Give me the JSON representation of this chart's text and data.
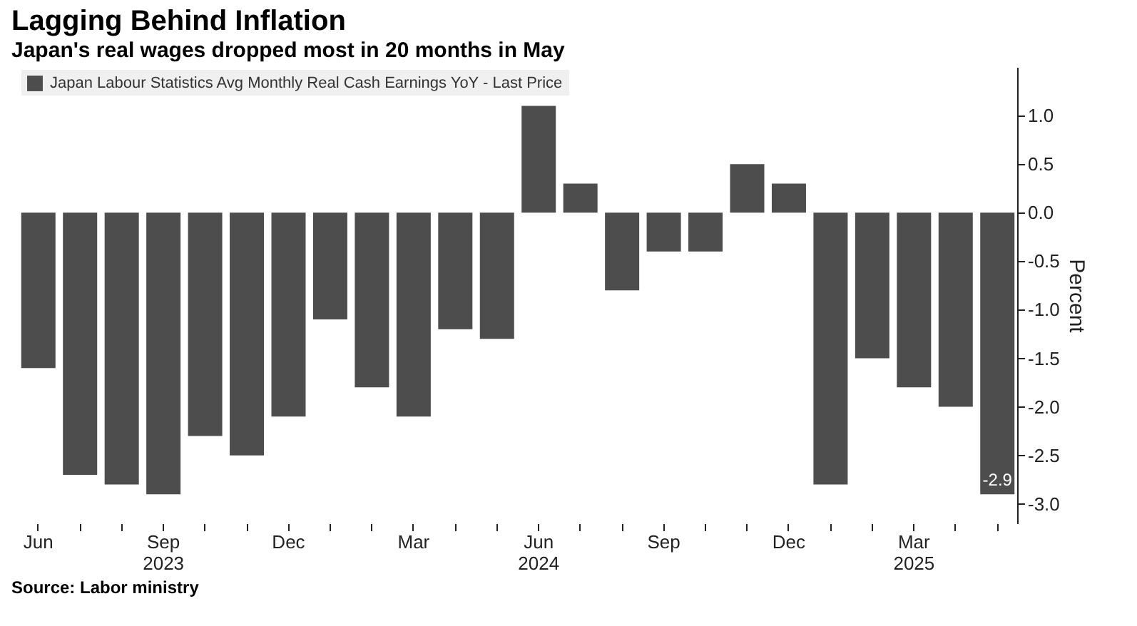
{
  "chart_data": {
    "type": "bar",
    "title": "Lagging Behind Inflation",
    "subtitle": "Japan's real wages dropped most in 20 months in May",
    "ylabel": "Percent",
    "categories": [
      "Jun",
      null,
      null,
      "Sep\n2023",
      null,
      null,
      "Dec",
      null,
      null,
      "Mar",
      null,
      null,
      "Jun\n2024",
      null,
      null,
      "Sep",
      null,
      null,
      "Dec",
      null,
      null,
      "Mar\n2025",
      null,
      null
    ],
    "series": [
      {
        "name": "Japan Labour Statistics Avg Monthly Real Cash Earnings YoY - Last Price",
        "color": "#4d4d4d",
        "values": [
          -1.6,
          -2.7,
          -2.8,
          -2.9,
          -2.3,
          -2.5,
          -2.1,
          -1.1,
          -1.8,
          -2.1,
          -1.2,
          -1.3,
          1.1,
          0.3,
          -0.8,
          -0.4,
          -0.4,
          0.5,
          0.3,
          -2.8,
          -1.5,
          -1.8,
          -2.0,
          -2.9
        ],
        "value_labels": [
          null,
          null,
          null,
          null,
          null,
          null,
          null,
          null,
          null,
          null,
          null,
          null,
          null,
          null,
          null,
          null,
          null,
          null,
          null,
          null,
          null,
          null,
          null,
          "-2.9"
        ]
      }
    ],
    "ylim": [
      -3.2,
      1.5
    ],
    "yticks": [
      {
        "value": -3,
        "label": "-3.0"
      },
      {
        "value": -2.5,
        "label": "-2.5"
      },
      {
        "value": -2,
        "label": "-2.0"
      },
      {
        "value": -1.5,
        "label": "-1.5"
      },
      {
        "value": -1,
        "label": "-1.0"
      },
      {
        "value": -0.5,
        "label": "-0.5"
      },
      {
        "value": 0,
        "label": "0.0"
      },
      {
        "value": 0.5,
        "label": "0.5"
      },
      {
        "value": 1,
        "label": "1.0"
      }
    ],
    "grid": false,
    "legend": "top left",
    "annotations": [
      "Source: Labor ministry"
    ]
  }
}
